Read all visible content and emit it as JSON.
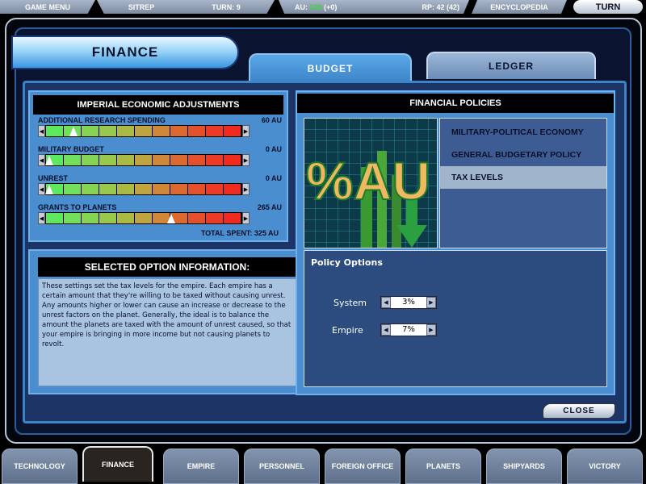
{
  "topbar": {
    "game_menu": "GAME MENU",
    "sitrep": "SITREP",
    "turn": "TURN: 9",
    "au_label": "AU:",
    "au_value": "120",
    "au_delta": "(+0)",
    "rp": "RP: 42 (42)",
    "encyclopedia": "ENCYCLOPEDIA",
    "turn_button": "TURN"
  },
  "title": "FINANCE",
  "tabs": [
    {
      "label": "BUDGET",
      "active": true
    },
    {
      "label": "LEDGER",
      "active": false
    }
  ],
  "adjustments": {
    "header": "IMPERIAL ECONOMIC ADJUSTMENTS",
    "sliders": [
      {
        "label": "ADDITIONAL RESEARCH SPENDING",
        "value": "60 AU",
        "level": 0.14
      },
      {
        "label": "MILITARY BUDGET",
        "value": "0 AU",
        "level": 0
      },
      {
        "label": "UNREST",
        "value": "0 AU",
        "level": 0
      },
      {
        "label": "GRANTS TO PLANETS",
        "value": "265 AU",
        "level": 0.64
      }
    ],
    "total": "TOTAL SPENT: 325 AU"
  },
  "selected_info": {
    "header": "SELECTED OPTION INFORMATION:",
    "text": "These settings set the tax levels for the empire. Each empire has a certain amount that they're willing to be taxed without causing unrest. Any amounts higher or lower can cause an increase or decrease to the unrest factors on the planet. Generally, the ideal is to balance the amount the planets are taxed with the amount of unrest caused, so that your empire is bringing in more income but not causing planets to revolt."
  },
  "policies": {
    "header": "FINANCIAL POLICIES",
    "image_text": "%AU",
    "items": [
      "MILITARY-POLITICAL ECONOMY",
      "GENERAL BUDGETARY POLICY",
      "TAX LEVELS"
    ],
    "selected": 2,
    "options_title": "Policy Options",
    "system_label": "System",
    "system_value": "3%",
    "empire_label": "Empire",
    "empire_value": "7%"
  },
  "close": "CLOSE",
  "bottom_tabs": [
    "TECHNOLOGY",
    "FINANCE",
    "EMPIRE",
    "PERSONNEL",
    "FOREIGN OFFICE",
    "PLANETS",
    "SHIPYARDS",
    "VICTORY"
  ],
  "colors": {
    "au_value": "#33dd33",
    "panel": "#4a8ed0",
    "selected_item": "#a0b4cc"
  }
}
